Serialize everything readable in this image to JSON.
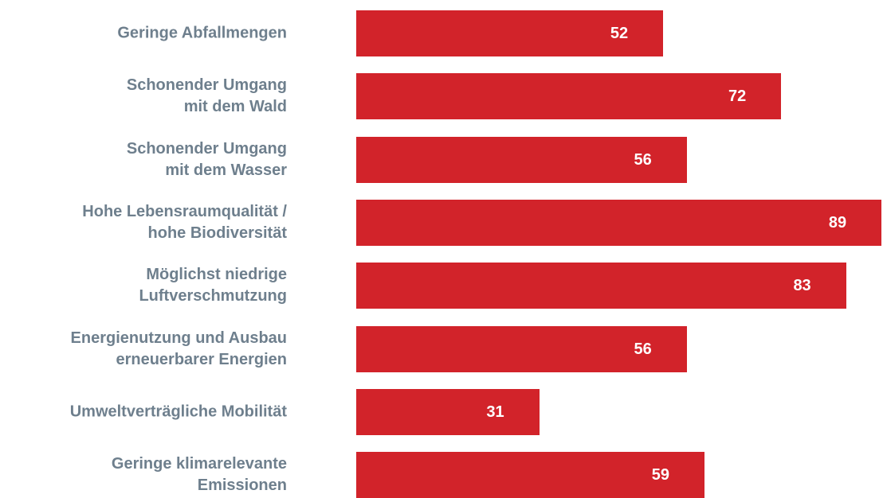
{
  "chart_data": {
    "type": "bar",
    "orientation": "horizontal",
    "categories": [
      "Geringe Abfallmengen",
      "Schonender Umgang\nmit dem Wald",
      "Schonender Umgang\nmit dem Wasser",
      "Hohe Lebensraumqualität /\nhohe Biodiversität",
      "Möglichst niedrige\nLuftverschmutzung",
      "Energienutzung und Ausbau\nerneuerbarer Energien",
      "Umweltverträgliche Mobilität",
      "Geringe klimarelevante\nEmissionen"
    ],
    "values": [
      52,
      72,
      56,
      89,
      83,
      56,
      31,
      59
    ],
    "color": "#d2232a"
  }
}
